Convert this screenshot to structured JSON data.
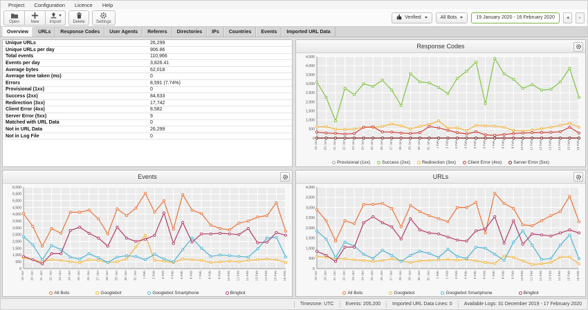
{
  "menu": {
    "items": [
      "Project",
      "Configuration",
      "Licence",
      "Help"
    ]
  },
  "toolbar": {
    "buttons": [
      {
        "label": "Open",
        "icon": "folder-open-icon"
      },
      {
        "label": "New",
        "icon": "plus-icon"
      },
      {
        "label": "Import",
        "icon": "import-upload-icon"
      },
      {
        "label": "Delete",
        "icon": "trash-icon"
      },
      {
        "label": "Settings",
        "icon": "gear-icon"
      }
    ],
    "verified_dropdown": "Verified",
    "bots_dropdown": "All Bots",
    "date_range": "19 January 2020 - 16 February 2020",
    "prev_label": "◀",
    "next_label": "▶"
  },
  "tabs": {
    "items": [
      "Overview",
      "URLs",
      "Response Codes",
      "User Agents",
      "Referers",
      "Directories",
      "IPs",
      "Countries",
      "Events",
      "Imported URL Data"
    ],
    "active": "Overview"
  },
  "overview_table": {
    "rows": [
      {
        "label": "Unique URLs",
        "value": "26,299"
      },
      {
        "label": "Unique URLs per day",
        "value": "906.86"
      },
      {
        "label": "Total events",
        "value": "110,966"
      },
      {
        "label": "Events per day",
        "value": "3,826.41"
      },
      {
        "label": "Average bytes",
        "value": "62,018"
      },
      {
        "label": "Average time taken (ms)",
        "value": "0"
      },
      {
        "label": "Errors",
        "value": "8,591 (7.74%)"
      },
      {
        "label": "Provisional (1xx)",
        "value": "0"
      },
      {
        "label": "Success (2xx)",
        "value": "84,633"
      },
      {
        "label": "Redirection (3xx)",
        "value": "17,742"
      },
      {
        "label": "Client Error (4xx)",
        "value": "8,582"
      },
      {
        "label": "Server Error (5xx)",
        "value": "9"
      },
      {
        "label": "Matched with URL Data",
        "value": "0"
      },
      {
        "label": "Not in URL Data",
        "value": "26,299"
      },
      {
        "label": "Not in Log File",
        "value": "0"
      }
    ]
  },
  "chart_data": [
    {
      "id": "response-codes",
      "type": "line",
      "title": "Response Codes",
      "categories": [
        "19 Jan",
        "20 Jan",
        "21 Jan",
        "22 Jan",
        "23 Jan",
        "24 Jan",
        "25 Jan",
        "26 Jan",
        "27 Jan",
        "28 Jan",
        "29 Jan",
        "30 Jan",
        "31 Jan",
        "1 Feb",
        "2 Feb",
        "3 Feb",
        "4 Feb",
        "5 Feb",
        "6 Feb",
        "7 Feb",
        "8 Feb",
        "9 Feb",
        "10 Feb",
        "11 Feb",
        "12 Feb",
        "13 Feb",
        "14 Feb",
        "15 Feb",
        "16 Feb"
      ],
      "ylim": [
        0,
        4500
      ],
      "ytick_step": 500,
      "grid": true,
      "legend_position": "bottom",
      "series": [
        {
          "name": "Provisional (1xx)",
          "color": "#9e9e9e",
          "values": [
            0,
            0,
            0,
            0,
            0,
            0,
            0,
            0,
            0,
            0,
            0,
            0,
            0,
            0,
            0,
            0,
            0,
            0,
            0,
            0,
            0,
            0,
            0,
            0,
            0,
            0,
            0,
            0,
            0
          ]
        },
        {
          "name": "Success (2xx)",
          "color": "#80c342",
          "values": [
            3100,
            2250,
            950,
            2750,
            2400,
            3000,
            2850,
            3200,
            2650,
            1800,
            3550,
            3100,
            3050,
            2800,
            2450,
            3300,
            3700,
            4200,
            1900,
            4400,
            3550,
            3250,
            2750,
            2950,
            2650,
            2700,
            3100,
            3850,
            2250
          ]
        },
        {
          "name": "Redirection (3xx)",
          "color": "#f2b437",
          "values": [
            620,
            630,
            490,
            480,
            500,
            600,
            590,
            640,
            780,
            680,
            500,
            650,
            750,
            950,
            550,
            560,
            420,
            700,
            680,
            660,
            600,
            420,
            390,
            450,
            520,
            600,
            700,
            820,
            600
          ]
        },
        {
          "name": "Client Error (4xx)",
          "color": "#cb3d35",
          "values": [
            330,
            280,
            260,
            220,
            250,
            600,
            620,
            340,
            330,
            280,
            250,
            300,
            640,
            560,
            430,
            300,
            230,
            350,
            180,
            150,
            200,
            250,
            280,
            300,
            310,
            320,
            350,
            600,
            280
          ]
        },
        {
          "name": "Server Error (5xx)",
          "color": "#7b1f1f",
          "values": [
            0,
            0,
            0,
            0,
            0,
            0,
            0,
            0,
            0,
            0,
            0,
            0,
            0,
            0,
            0,
            0,
            0,
            0,
            0,
            0,
            0,
            0,
            0,
            0,
            0,
            0,
            0,
            0,
            0
          ]
        }
      ]
    },
    {
      "id": "events",
      "type": "line",
      "title": "Events",
      "categories": [
        "19 Jan",
        "20 Jan",
        "21 Jan",
        "22 Jan",
        "23 Jan",
        "24 Jan",
        "25 Jan",
        "26 Jan",
        "27 Jan",
        "28 Jan",
        "29 Jan",
        "30 Jan",
        "31 Jan",
        "1 Feb",
        "2 Feb",
        "3 Feb",
        "4 Feb",
        "5 Feb",
        "6 Feb",
        "7 Feb",
        "8 Feb",
        "9 Feb",
        "10 Feb",
        "11 Feb",
        "12 Feb",
        "13 Feb",
        "14 Feb",
        "15 Feb",
        "16 Feb"
      ],
      "ylim": [
        0,
        6000
      ],
      "ytick_step": 500,
      "grid": true,
      "legend_position": "bottom",
      "series": [
        {
          "name": "All Bots",
          "color": "#e8743b",
          "values": [
            4050,
            3100,
            1650,
            2950,
            2600,
            4150,
            4150,
            4300,
            3650,
            2550,
            4400,
            3900,
            4450,
            5550,
            4150,
            5000,
            2900,
            5450,
            4300,
            4050,
            3200,
            2950,
            2850,
            3350,
            3500,
            3800,
            3900,
            4850,
            2750
          ]
        },
        {
          "name": "Googlebot",
          "color": "#f2b437",
          "values": [
            800,
            650,
            500,
            650,
            600,
            500,
            450,
            650,
            600,
            450,
            500,
            700,
            1600,
            2450,
            600,
            550,
            450,
            700,
            650,
            600,
            450,
            500,
            550,
            500,
            600,
            650,
            700,
            650,
            450
          ]
        },
        {
          "name": "Googlebot Smartphone",
          "color": "#4eb3d3",
          "values": [
            2350,
            1750,
            650,
            1700,
            1400,
            850,
            700,
            1100,
            800,
            450,
            850,
            950,
            900,
            650,
            1050,
            700,
            500,
            1400,
            2250,
            1500,
            900,
            1000,
            950,
            900,
            850,
            1450,
            2250,
            2300,
            850
          ]
        },
        {
          "name": "Bingbot",
          "color": "#b23a66",
          "values": [
            900,
            650,
            350,
            1100,
            1100,
            2800,
            3050,
            2600,
            2250,
            1650,
            3050,
            2250,
            2000,
            2150,
            2450,
            4100,
            1850,
            3400,
            1950,
            2550,
            2550,
            2600,
            2550,
            2500,
            2950,
            1900,
            1950,
            2650,
            2450
          ]
        }
      ]
    },
    {
      "id": "urls",
      "type": "line",
      "title": "URLs",
      "categories": [
        "19 Jan",
        "20 Jan",
        "21 Jan",
        "22 Jan",
        "23 Jan",
        "24 Jan",
        "25 Jan",
        "26 Jan",
        "27 Jan",
        "28 Jan",
        "29 Jan",
        "30 Jan",
        "31 Jan",
        "1 Feb",
        "2 Feb",
        "3 Feb",
        "4 Feb",
        "5 Feb",
        "6 Feb",
        "7 Feb",
        "8 Feb",
        "9 Feb",
        "10 Feb",
        "11 Feb",
        "12 Feb",
        "13 Feb",
        "14 Feb",
        "15 Feb",
        "16 Feb"
      ],
      "ylim": [
        0,
        4000
      ],
      "ytick_step": 500,
      "grid": true,
      "legend_position": "bottom",
      "series": [
        {
          "name": "All Bots",
          "color": "#e8743b",
          "values": [
            2900,
            2350,
            1350,
            2350,
            2200,
            3150,
            3150,
            3200,
            2950,
            2050,
            3100,
            2800,
            2600,
            2450,
            2300,
            3000,
            3000,
            3250,
            1750,
            3700,
            3200,
            2950,
            2150,
            2100,
            2350,
            2600,
            2800,
            3550,
            2300
          ]
        },
        {
          "name": "Googlebot",
          "color": "#f2b437",
          "values": [
            600,
            550,
            500,
            480,
            430,
            400,
            350,
            400,
            480,
            380,
            300,
            380,
            400,
            430,
            450,
            420,
            450,
            380,
            300,
            250,
            620,
            550,
            380,
            200,
            230,
            300,
            560,
            570,
            230
          ]
        },
        {
          "name": "Googlebot Smartphone",
          "color": "#4eb3d3",
          "values": [
            1850,
            1450,
            550,
            1300,
            1100,
            700,
            500,
            900,
            650,
            350,
            650,
            850,
            750,
            550,
            950,
            600,
            500,
            1050,
            1000,
            700,
            400,
            1300,
            1850,
            1150,
            450,
            500,
            1150,
            1650,
            480
          ]
        },
        {
          "name": "Bingbot",
          "color": "#b23a66",
          "values": [
            850,
            650,
            350,
            1050,
            1050,
            2250,
            2550,
            2250,
            2050,
            1450,
            2450,
            1900,
            1750,
            1700,
            1550,
            1400,
            1350,
            1850,
            1950,
            2550,
            1250,
            2350,
            1200,
            1700,
            1650,
            1600,
            1750,
            1900,
            1750
          ]
        }
      ]
    }
  ],
  "status_bar": {
    "items": [
      "Timezone: UTC",
      "Events: 205,200",
      "Imported URL Data Lines: 0",
      "Available Logs: 31 December 2019 - 17 February 2020"
    ]
  },
  "colors": {
    "accent_green": "#7cb342",
    "chart_plot_bg": "#ebebeb",
    "grid_line": "#ffffff"
  }
}
